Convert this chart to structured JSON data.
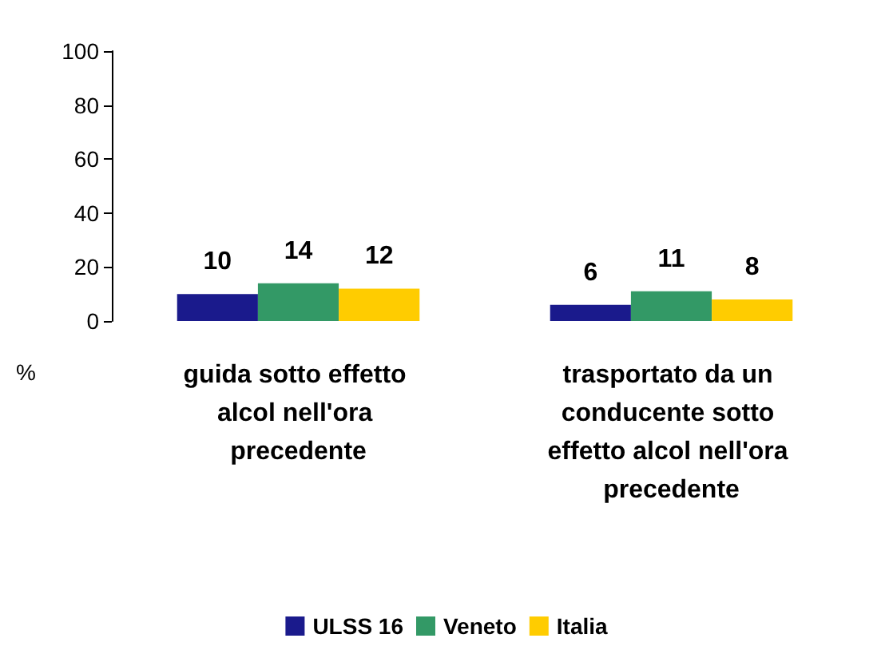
{
  "chart_data": {
    "type": "bar",
    "categories": [
      "guida sotto effetto alcol nell'ora precedente",
      "trasportato da un conducente sotto effetto alcol nell'ora precedente"
    ],
    "series": [
      {
        "name": "ULSS 16",
        "color": "#1a1a8c",
        "values": [
          10,
          6
        ]
      },
      {
        "name": "Veneto",
        "color": "#339966",
        "values": [
          14,
          11
        ]
      },
      {
        "name": "Italia",
        "color": "#ffcc00",
        "values": [
          12,
          8
        ]
      }
    ],
    "ylabel": "%",
    "ylim": [
      0,
      100
    ],
    "yticks": [
      0,
      20,
      40,
      60,
      80,
      100
    ],
    "data_labels": true,
    "grid": false,
    "legend": "bottom"
  }
}
